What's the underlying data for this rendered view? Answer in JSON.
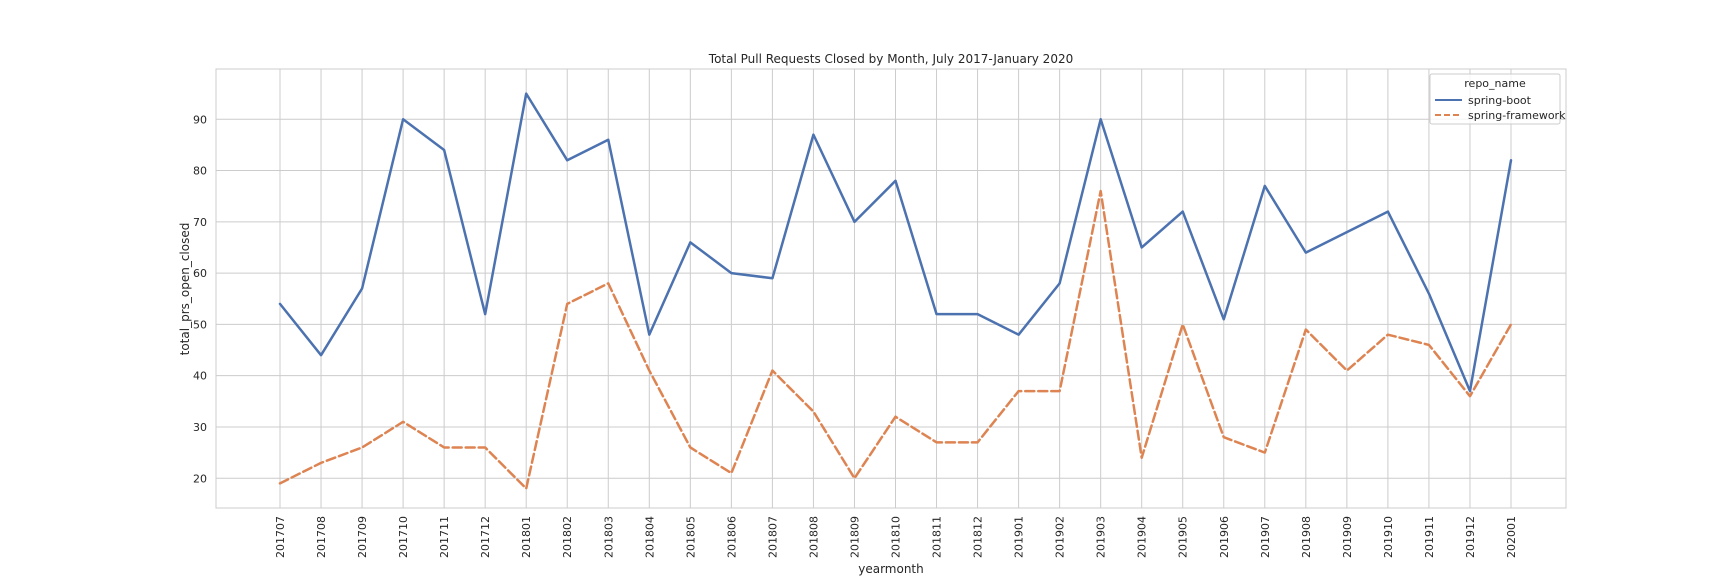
{
  "chart_data": {
    "type": "line",
    "title": "Total Pull Requests Closed by Month, July 2017-January 2020",
    "xlabel": "yearmonth",
    "ylabel": "total_prs_open_closed",
    "categories": [
      "201707",
      "201708",
      "201709",
      "201710",
      "201711",
      "201712",
      "201801",
      "201802",
      "201803",
      "201804",
      "201805",
      "201806",
      "201807",
      "201808",
      "201809",
      "201810",
      "201811",
      "201812",
      "201901",
      "201902",
      "201903",
      "201904",
      "201905",
      "201906",
      "201907",
      "201908",
      "201909",
      "201910",
      "201911",
      "201912",
      "202001"
    ],
    "ylim": [
      14.2,
      99.8
    ],
    "yticks": [
      20,
      30,
      40,
      50,
      60,
      70,
      80,
      90
    ],
    "grid": true,
    "legend": {
      "title": "repo_name",
      "position": "top-right"
    },
    "series": [
      {
        "name": "spring-boot",
        "color": "#4c72b0",
        "dash": "solid",
        "values": [
          54,
          44,
          57,
          90,
          84,
          52,
          95,
          82,
          86,
          48,
          66,
          60,
          59,
          87,
          70,
          78,
          52,
          52,
          48,
          58,
          90,
          65,
          72,
          51,
          77,
          64,
          68,
          72,
          56,
          37,
          82
        ]
      },
      {
        "name": "spring-framework",
        "color": "#dd8452",
        "dash": "dashed",
        "values": [
          19,
          23,
          26,
          31,
          26,
          26,
          18,
          54,
          58,
          41,
          26,
          21,
          41,
          33,
          20,
          32,
          27,
          27,
          37,
          37,
          76,
          24,
          50,
          28,
          25,
          49,
          41,
          48,
          46,
          36,
          50
        ]
      }
    ]
  }
}
